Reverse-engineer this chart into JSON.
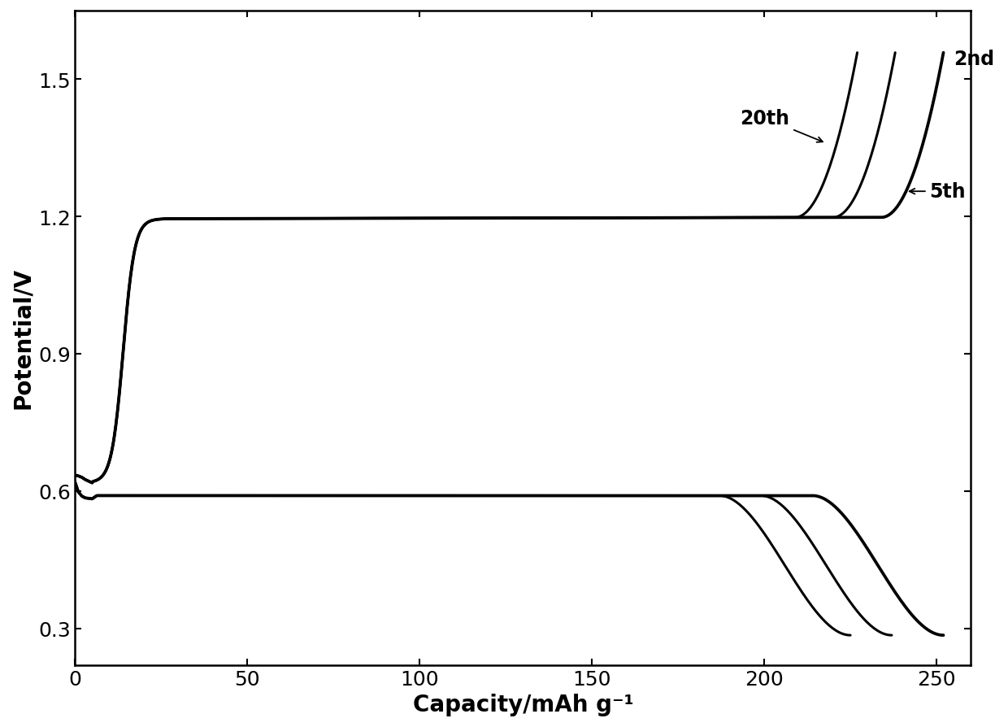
{
  "title": "",
  "xlabel": "Capacity/mAh g⁻¹",
  "ylabel": "Potential/V",
  "xlim": [
    0,
    260
  ],
  "ylim": [
    0.22,
    1.65
  ],
  "xticks": [
    0,
    50,
    100,
    150,
    200,
    250
  ],
  "yticks": [
    0.3,
    0.6,
    0.9,
    1.2,
    1.5
  ],
  "background_color": "#ffffff",
  "line_color": "#000000",
  "linewidth": 2.2,
  "annotation_2nd": "2nd",
  "annotation_5th": "5th",
  "annotation_20th": "20th",
  "xlabel_fontsize": 20,
  "ylabel_fontsize": 20,
  "tick_fontsize": 18,
  "annotation_fontsize": 17,
  "cycles": [
    {
      "label": "2nd",
      "charge_cap": 252,
      "discharge_cap": 252,
      "lw_extra": 0.5
    },
    {
      "label": "5th",
      "charge_cap": 238,
      "discharge_cap": 237,
      "lw_extra": 0.0
    },
    {
      "label": "20th",
      "charge_cap": 227,
      "discharge_cap": 225,
      "lw_extra": 0.0
    }
  ]
}
